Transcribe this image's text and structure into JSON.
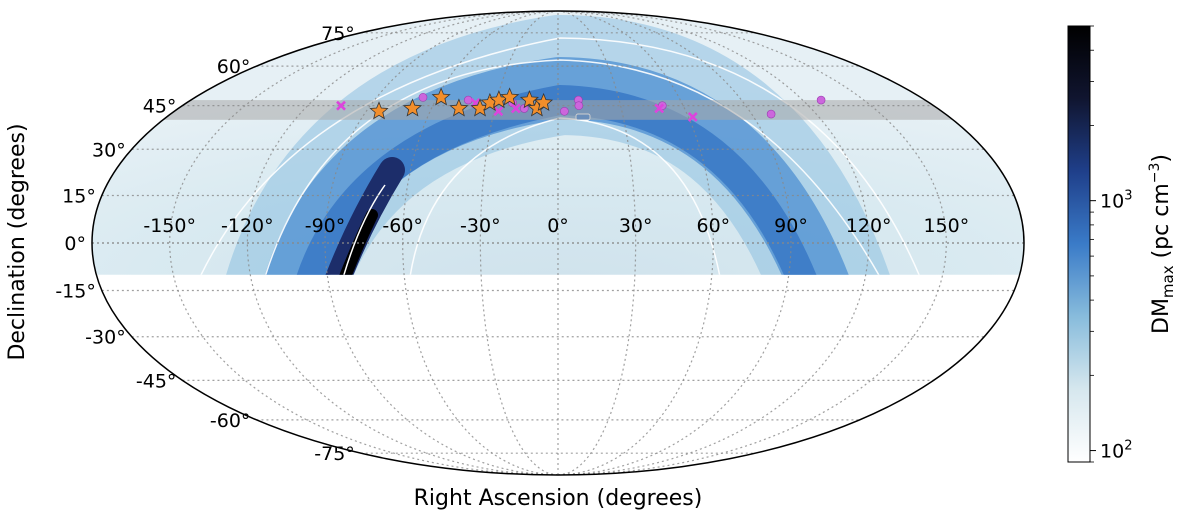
{
  "chart_data": {
    "type": "heatmap",
    "projection": "mollweide",
    "xlabel": "Right Ascension (degrees)",
    "ylabel": "Declination (degrees)",
    "x_ticks": [
      -150,
      -120,
      -90,
      -60,
      -30,
      0,
      30,
      60,
      90,
      120,
      150
    ],
    "x_tick_labels": [
      "-150°",
      "-120°",
      "-90°",
      "-60°",
      "-30°",
      "0°",
      "30°",
      "60°",
      "90°",
      "120°",
      "150°"
    ],
    "y_ticks": [
      75,
      60,
      45,
      30,
      15,
      0,
      -15,
      -30,
      -45,
      -60,
      -75
    ],
    "y_tick_labels": [
      "75°",
      "60°",
      "45°",
      "30°",
      "15°",
      "0°",
      "-15°",
      "-30°",
      "-45°",
      "-60°",
      "-75°"
    ],
    "coverage_dec_range": [
      -10,
      90
    ],
    "highlight_band_dec": [
      40,
      47
    ],
    "grid": true,
    "colorbar": {
      "label_main": "DM",
      "label_sub": "max",
      "label_unit": " (pc cm",
      "label_exp": "−3",
      "label_close": ")",
      "scale": "log",
      "range": [
        90,
        5000
      ],
      "tick_values": [
        100,
        1000
      ],
      "tick_labels": [
        {
          "base": "10",
          "exp": "2"
        },
        {
          "base": "10",
          "exp": "3"
        }
      ],
      "colors": [
        "#ffffff",
        "#d6e7ee",
        "#88bcdc",
        "#3a7bc8",
        "#1f3f8a",
        "#101530",
        "#000000"
      ]
    },
    "marker_colors": {
      "star": "#f28e2b",
      "circle": "#cc66dd",
      "cross": "#dd44dd"
    },
    "stars": [
      {
        "ra": -84,
        "dec": 43
      },
      {
        "ra": -69,
        "dec": 44
      },
      {
        "ra": -58,
        "dec": 48
      },
      {
        "ra": -47,
        "dec": 44
      },
      {
        "ra": -37,
        "dec": 44
      },
      {
        "ra": -33,
        "dec": 46
      },
      {
        "ra": -29,
        "dec": 47
      },
      {
        "ra": -24,
        "dec": 48
      },
      {
        "ra": -14,
        "dec": 47
      },
      {
        "ra": -10,
        "dec": 44
      },
      {
        "ra": -7,
        "dec": 46
      }
    ],
    "circles": [
      {
        "ra": -67,
        "dec": 48
      },
      {
        "ra": -44,
        "dec": 47
      },
      {
        "ra": -31,
        "dec": 46
      },
      {
        "ra": -22,
        "dec": 46
      },
      {
        "ra": -16,
        "dec": 44
      },
      {
        "ra": 3,
        "dec": 43
      },
      {
        "ra": 10,
        "dec": 47
      },
      {
        "ra": 10,
        "dec": 45
      },
      {
        "ra": 50,
        "dec": 45
      },
      {
        "ra": 99,
        "dec": 42
      },
      {
        "ra": 129,
        "dec": 47
      }
    ],
    "crosses": [
      {
        "ra": -104,
        "dec": 45
      },
      {
        "ra": -40,
        "dec": 46
      },
      {
        "ra": -28,
        "dec": 43
      },
      {
        "ra": -20,
        "dec": 44
      },
      {
        "ra": 48,
        "dec": 44
      },
      {
        "ra": 62,
        "dec": 41
      }
    ]
  }
}
